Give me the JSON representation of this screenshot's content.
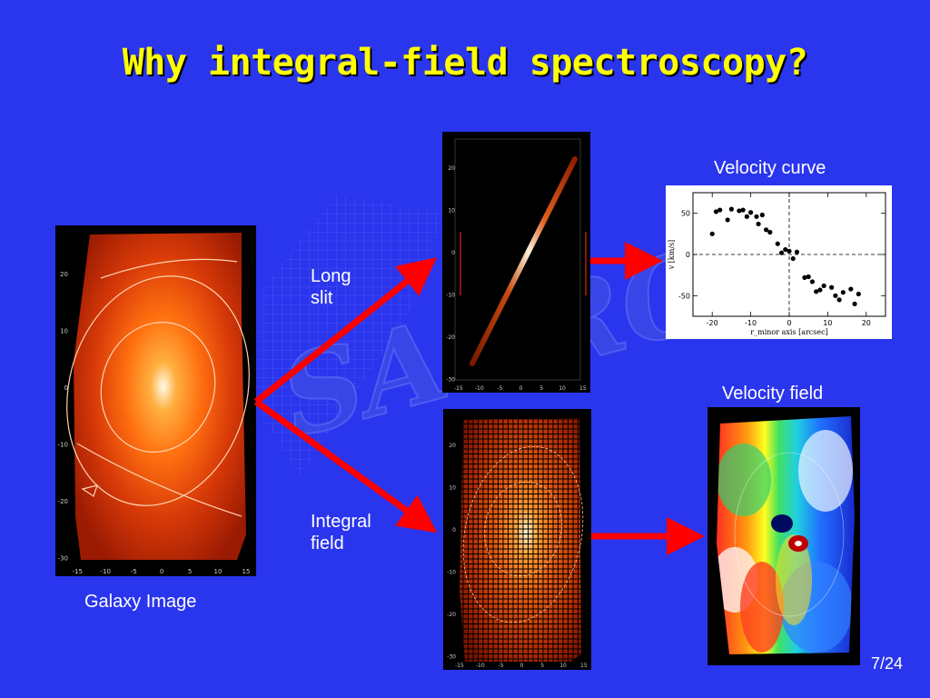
{
  "slide": {
    "title": "Why integral-field spectroscopy?",
    "page_number": "7/24"
  },
  "labels": {
    "galaxy_image": "Galaxy Image",
    "long_slit_line1": "Long",
    "long_slit_line2": "slit",
    "integral_field_line1": "Integral",
    "integral_field_line2": "field",
    "velocity_curve": "Velocity curve",
    "velocity_field": "Velocity field"
  },
  "watermark": {
    "text": "SAURON"
  },
  "image_axes": {
    "x_ticks": [
      "-15",
      "-10",
      "-5",
      "0",
      "5",
      "10",
      "15"
    ],
    "y_ticks": [
      "20",
      "10",
      "0",
      "-10",
      "-20",
      "-30"
    ],
    "y_ticks_tall": [
      "20",
      "10",
      "0",
      "-10",
      "-20",
      "-30"
    ]
  },
  "chart_data": {
    "type": "scatter",
    "title": "",
    "xlabel": "r_minor axis [arcsec]",
    "ylabel": "v [km/s]",
    "xlim": [
      -25,
      25
    ],
    "ylim": [
      -75,
      75
    ],
    "x_ticks": [
      "-20",
      "-10",
      "0",
      "10",
      "20"
    ],
    "y_ticks": [
      "50",
      "0",
      "-50"
    ],
    "points": [
      {
        "x": -20,
        "y": 25
      },
      {
        "x": -19,
        "y": 52
      },
      {
        "x": -18,
        "y": 54
      },
      {
        "x": -16,
        "y": 42
      },
      {
        "x": -15,
        "y": 55
      },
      {
        "x": -13,
        "y": 53
      },
      {
        "x": -12,
        "y": 54
      },
      {
        "x": -11,
        "y": 46
      },
      {
        "x": -10,
        "y": 51
      },
      {
        "x": -8.5,
        "y": 46
      },
      {
        "x": -8,
        "y": 37
      },
      {
        "x": -7,
        "y": 48
      },
      {
        "x": -6,
        "y": 30
      },
      {
        "x": -5,
        "y": 27
      },
      {
        "x": -3,
        "y": 13
      },
      {
        "x": -2,
        "y": 2
      },
      {
        "x": -1,
        "y": 6
      },
      {
        "x": 0,
        "y": 4
      },
      {
        "x": 1,
        "y": -5
      },
      {
        "x": 2,
        "y": 3
      },
      {
        "x": 4,
        "y": -28
      },
      {
        "x": 5,
        "y": -27
      },
      {
        "x": 6,
        "y": -33
      },
      {
        "x": 7,
        "y": -45
      },
      {
        "x": 8,
        "y": -43
      },
      {
        "x": 9,
        "y": -38
      },
      {
        "x": 11,
        "y": -40
      },
      {
        "x": 12,
        "y": -50
      },
      {
        "x": 13,
        "y": -55
      },
      {
        "x": 14,
        "y": -46
      },
      {
        "x": 16,
        "y": -42
      },
      {
        "x": 17,
        "y": -60
      },
      {
        "x": 18,
        "y": -48
      }
    ]
  }
}
